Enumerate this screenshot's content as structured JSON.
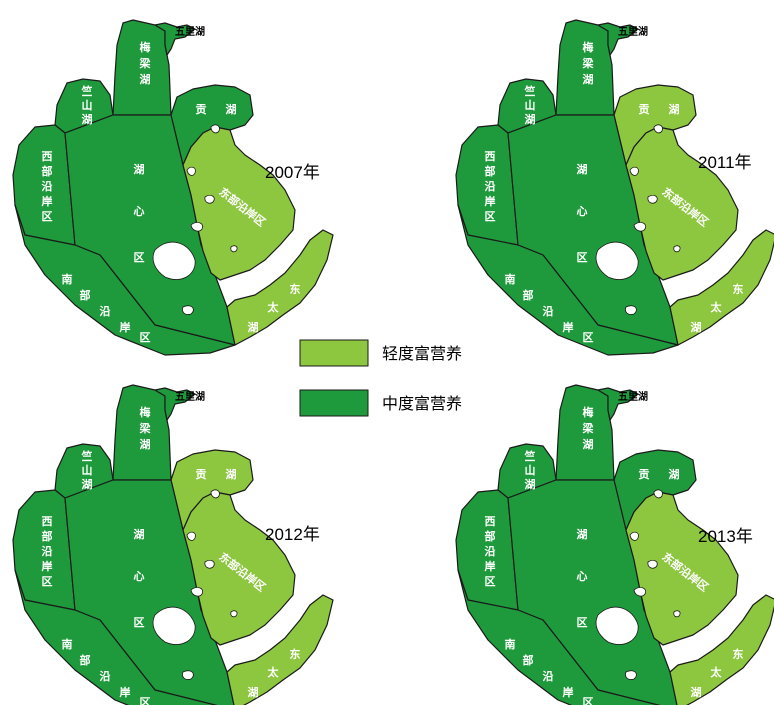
{
  "colors": {
    "light": "#8dc63f",
    "moderate": "#1e9a3c",
    "outline": "#1a1a1a"
  },
  "legend": [
    {
      "level": "light",
      "label": "轻度富营养"
    },
    {
      "level": "moderate",
      "label": "中度富营养"
    }
  ],
  "labels": {
    "wulihu": "五里湖",
    "meilianghu": [
      "梅",
      "梁",
      "湖"
    ],
    "zhushanhu": [
      "竺",
      "山",
      "湖"
    ],
    "gonghu": [
      "贡",
      "湖"
    ],
    "xibu": [
      "西",
      "部",
      "沿",
      "岸",
      "区"
    ],
    "huxin": [
      "湖",
      "心",
      "区"
    ],
    "nanbu": [
      "南",
      "部",
      "沿",
      "岸",
      "区"
    ],
    "dongbu": "东部沿岸区",
    "dongtaihu": [
      "东",
      "太",
      "湖"
    ]
  },
  "maps": [
    {
      "year": "2007年",
      "zones": {
        "gonghu": "moderate",
        "dongbu": "light",
        "dongtaihu": "light",
        "meilianghu": "moderate",
        "zhushanhu": "moderate",
        "xibu": "moderate",
        "huxin": "moderate",
        "nanbu": "moderate"
      }
    },
    {
      "year": "2011年",
      "zones": {
        "gonghu": "light",
        "dongbu": "light",
        "dongtaihu": "light",
        "meilianghu": "moderate",
        "zhushanhu": "moderate",
        "xibu": "moderate",
        "huxin": "moderate",
        "nanbu": "moderate"
      }
    },
    {
      "year": "2012年",
      "zones": {
        "gonghu": "light",
        "dongbu": "light",
        "dongtaihu": "light",
        "meilianghu": "moderate",
        "zhushanhu": "moderate",
        "xibu": "moderate",
        "huxin": "moderate",
        "nanbu": "moderate"
      }
    },
    {
      "year": "2013年",
      "zones": {
        "gonghu": "moderate",
        "dongbu": "light",
        "dongtaihu": "light",
        "meilianghu": "moderate",
        "zhushanhu": "moderate",
        "xibu": "moderate",
        "huxin": "moderate",
        "nanbu": "moderate"
      }
    }
  ]
}
